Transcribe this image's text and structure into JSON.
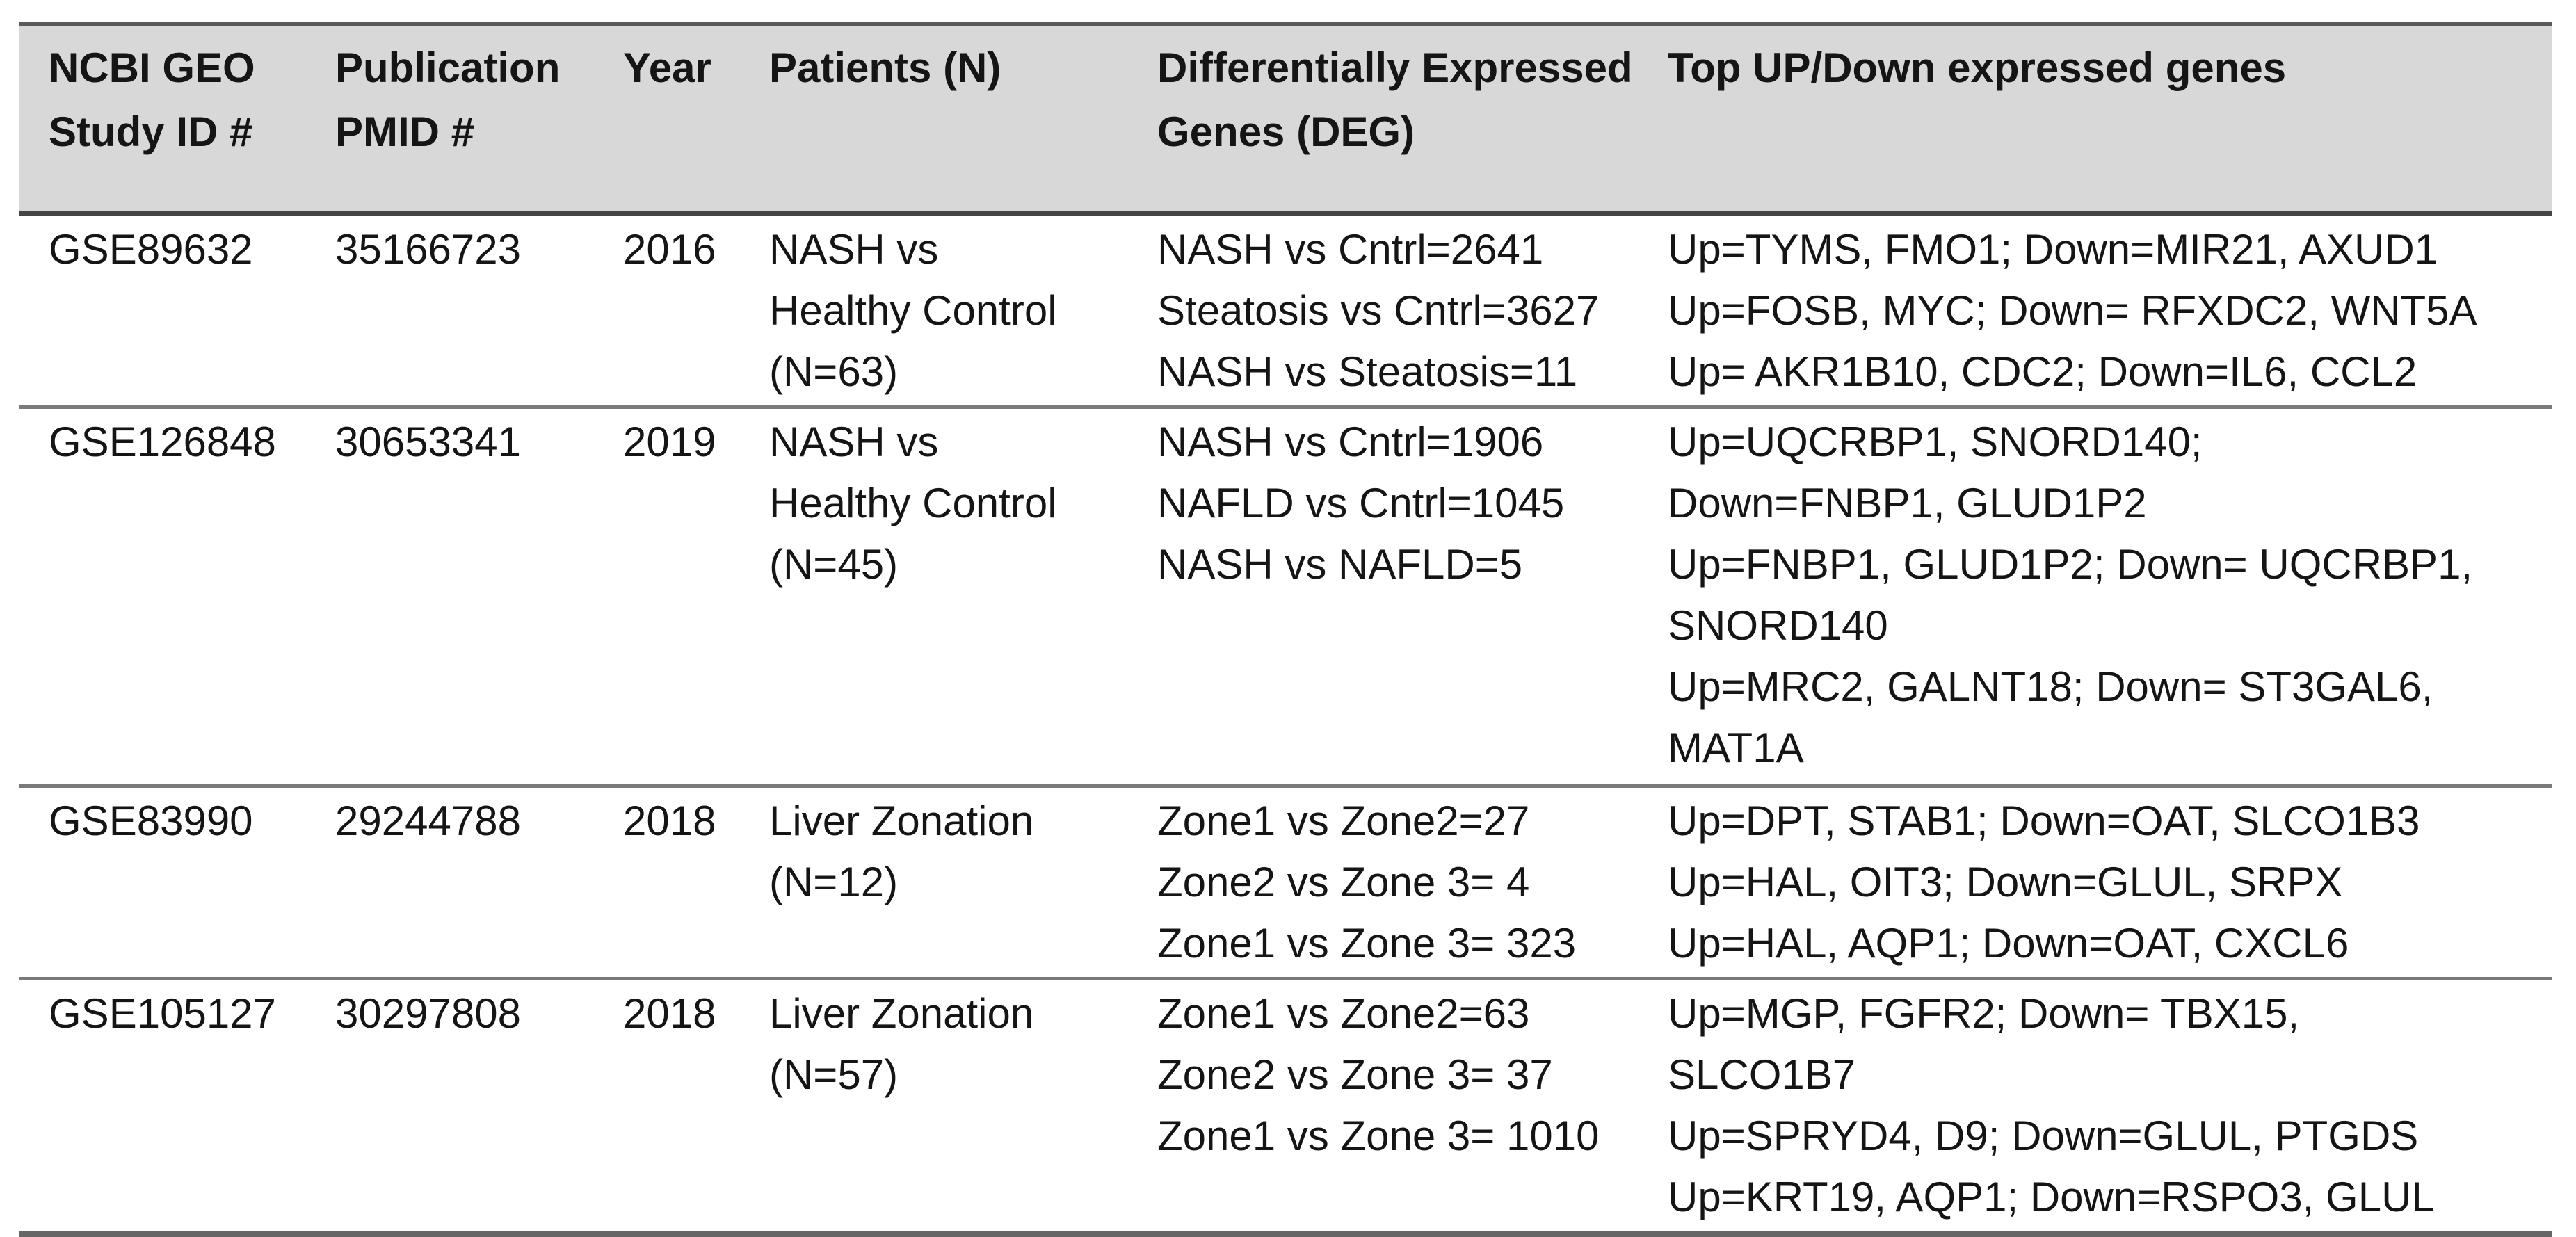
{
  "table": {
    "title_semantic": "NCBI GEO liver transcriptomics studies summary table",
    "colors": {
      "header_bg": "#d8d8d8",
      "text": "#151515",
      "border_outer": "#595959",
      "border_header": "#454545",
      "border_row": "#7a7a7a"
    },
    "columns": [
      {
        "lines": [
          "NCBI GEO",
          "Study ID #"
        ]
      },
      {
        "lines": [
          "Publication",
          "PMID #"
        ]
      },
      {
        "lines": [
          "Year"
        ]
      },
      {
        "lines": [
          "Patients (N)"
        ]
      },
      {
        "lines": [
          "Differentially Expressed",
          "Genes (DEG)"
        ]
      },
      {
        "lines": [
          "Top UP/Down expressed genes"
        ]
      }
    ],
    "rows": [
      {
        "study_id": "GSE89632",
        "pmid": "35166723",
        "year": "2016",
        "patients_lines": [
          "NASH vs",
          "Healthy Control",
          "(N=63)"
        ],
        "deg_lines": [
          "NASH vs Cntrl=2641",
          "Steatosis vs Cntrl=3627",
          "NASH vs Steatosis=11"
        ],
        "genes_lines": [
          "Up=TYMS, FMO1; Down=MIR21, AXUD1",
          "Up=FOSB, MYC; Down= RFXDC2, WNT5A",
          "Up= AKR1B10, CDC2; Down=IL6, CCL2"
        ]
      },
      {
        "study_id": "GSE126848",
        "pmid": "30653341",
        "year": "2019",
        "patients_lines": [
          "NASH vs",
          "Healthy Control",
          "(N=45)"
        ],
        "deg_lines": [
          "NASH vs Cntrl=1906",
          "NAFLD vs Cntrl=1045",
          "NASH vs NAFLD=5"
        ],
        "genes_lines": [
          "Up=UQCRBP1, SNORD140;",
          "Down=FNBP1, GLUD1P2",
          "Up=FNBP1, GLUD1P2; Down= UQCRBP1,",
          "SNORD140",
          "Up=MRC2, GALNT18; Down= ST3GAL6,",
          "MAT1A"
        ]
      },
      {
        "study_id": "GSE83990",
        "pmid": "29244788",
        "year": "2018",
        "patients_lines": [
          "Liver Zonation",
          "(N=12)"
        ],
        "deg_lines": [
          "Zone1 vs Zone2=27",
          "Zone2 vs Zone 3= 4",
          "Zone1 vs Zone 3= 323"
        ],
        "genes_lines": [
          "Up=DPT, STAB1; Down=OAT, SLCO1B3",
          "Up=HAL, OIT3; Down=GLUL, SRPX",
          "Up=HAL, AQP1; Down=OAT, CXCL6"
        ]
      },
      {
        "study_id": "GSE105127",
        "pmid": "30297808",
        "year": "2018",
        "patients_lines": [
          "Liver Zonation",
          "(N=57)"
        ],
        "deg_lines": [
          "Zone1 vs Zone2=63",
          "Zone2 vs Zone 3= 37",
          "Zone1 vs Zone 3= 1010"
        ],
        "genes_lines": [
          "Up=MGP, FGFR2; Down= TBX15,",
          "SLCO1B7",
          "Up=SPRYD4, D9; Down=GLUL, PTGDS",
          "Up=KRT19, AQP1; Down=RSPO3, GLUL"
        ]
      }
    ]
  }
}
